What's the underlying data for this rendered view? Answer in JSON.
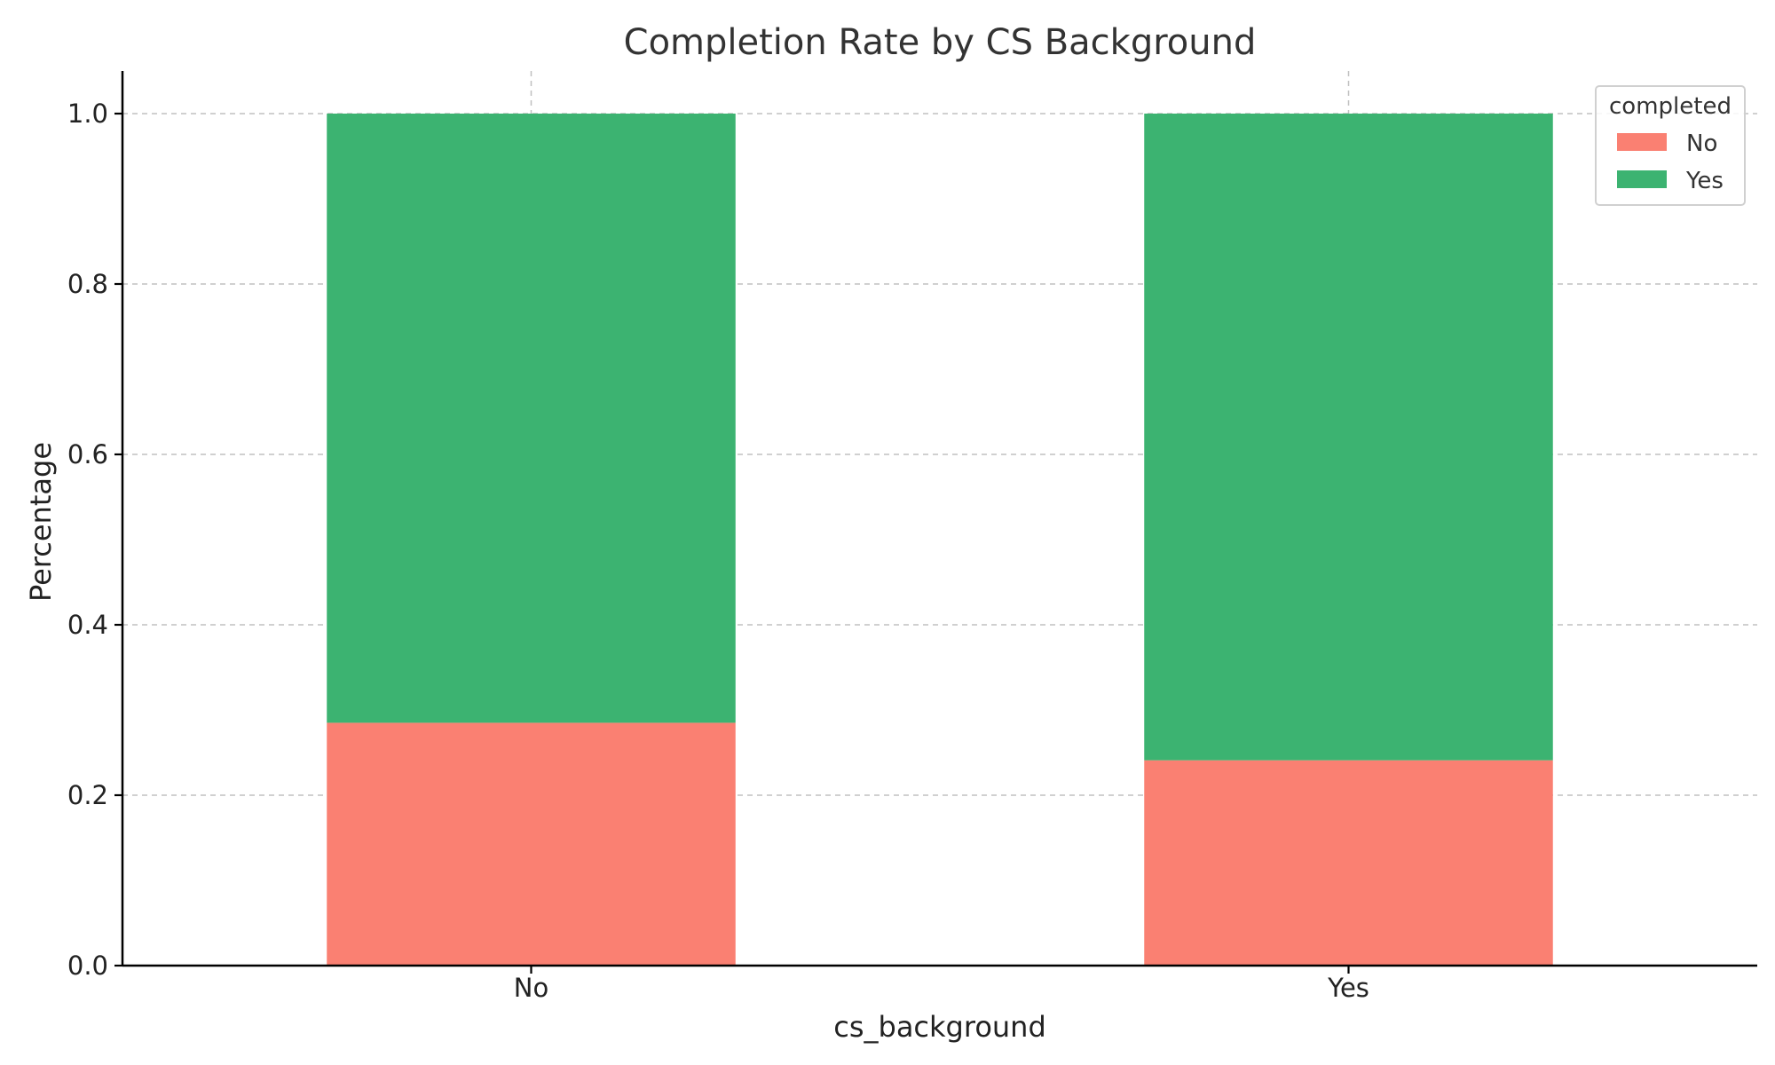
{
  "chart_data": {
    "type": "bar",
    "stacked": true,
    "title": "Completion Rate by CS Background",
    "xlabel": "cs_background",
    "ylabel": "Percentage",
    "categories": [
      "No",
      "Yes"
    ],
    "series": [
      {
        "name": "No",
        "color": "#FA8072",
        "values": [
          0.285,
          0.241
        ]
      },
      {
        "name": "Yes",
        "color": "#3CB371",
        "values": [
          0.715,
          0.759
        ]
      }
    ],
    "ylim": [
      0,
      1.05
    ],
    "yticks": [
      0.0,
      0.2,
      0.4,
      0.6,
      0.8,
      1.0
    ],
    "ytick_labels": [
      "0.0",
      "0.2",
      "0.4",
      "0.6",
      "0.8",
      "1.0"
    ],
    "grid": true,
    "legend": {
      "title": "completed",
      "placement": "top-right",
      "entries": [
        "No",
        "Yes"
      ]
    }
  }
}
